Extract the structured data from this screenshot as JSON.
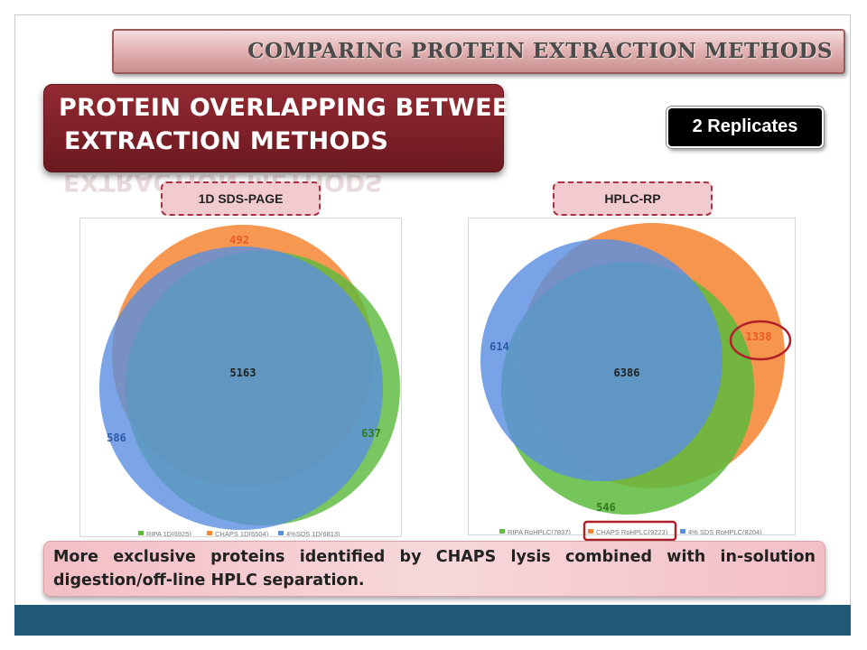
{
  "header": {
    "title": "COMPARING PROTEIN EXTRACTION METHODS"
  },
  "slide_title": {
    "line1": "PROTEIN OVERLAPPING BETWEEN",
    "line2": "EXTRACTION METHODS"
  },
  "replicates_badge": "2 Replicates",
  "diagrams": [
    {
      "label": "1D SDS-PAGE",
      "center_value": "5163",
      "values": {
        "chaps_only": "492",
        "sds_only": "586",
        "ripa_only": "637"
      },
      "legend": [
        "RIPA 1D(6925)",
        "CHAPS 1D(6504)",
        "4%SDS 1D(6813)"
      ]
    },
    {
      "label": "HPLC-RP",
      "center_value": "6386",
      "values": {
        "sds_only": "614",
        "chaps_only": "1338",
        "ripa_only": "546"
      },
      "legend": [
        "RIPA RpHPLC(7837)",
        "CHAPS RpHPLC(9223)",
        "4% SDS RpHPLC(8204)"
      ]
    }
  ],
  "colors": {
    "ripa": "#5dbb3e",
    "chaps": "#f58634",
    "sds": "#5a8fe0",
    "highlight": "#b0202a",
    "title_box": "#7b1f26",
    "footer": "#1f5878"
  },
  "conclusion": "More exclusive proteins identified by CHAPS lysis combined with in-solution digestion/off-line HPLC separation."
}
